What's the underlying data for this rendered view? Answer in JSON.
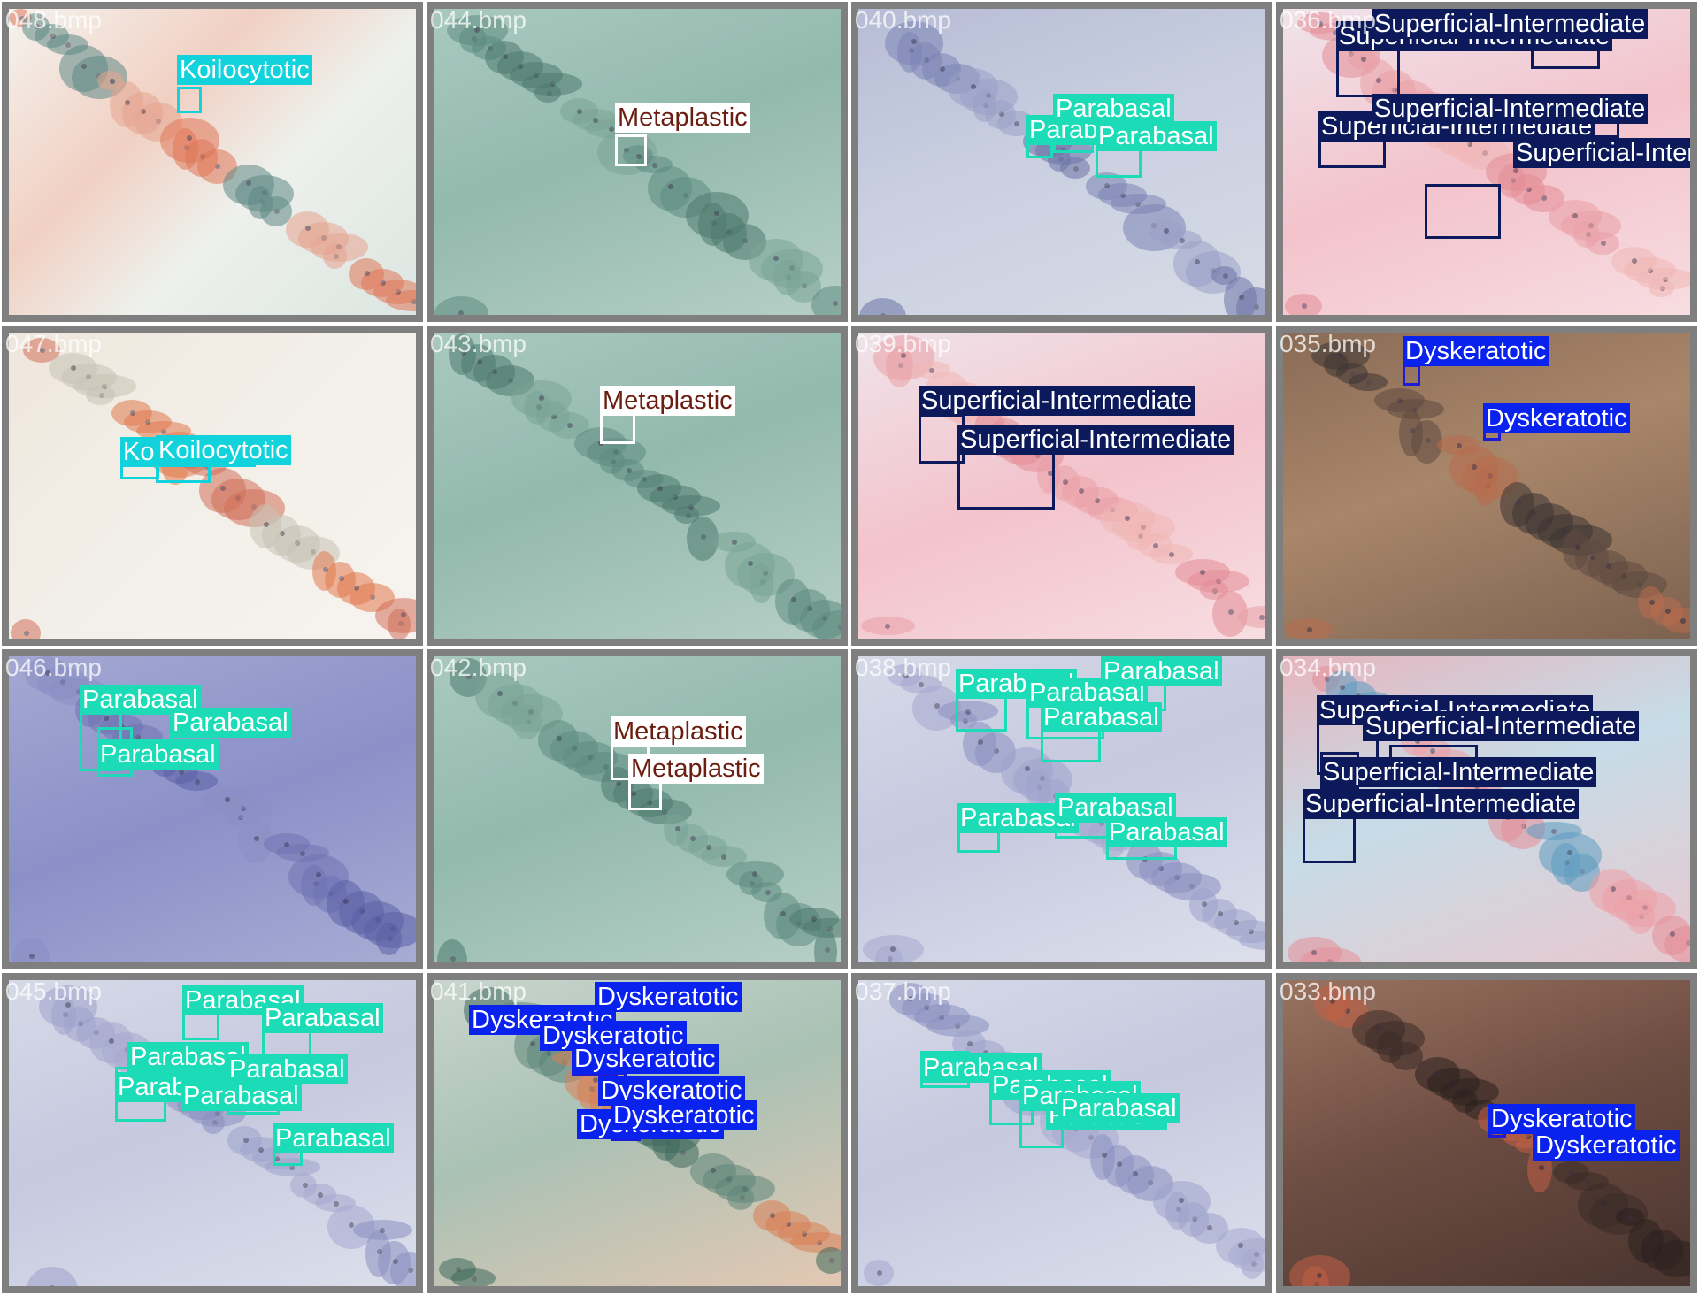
{
  "palette": {
    "Koilocytotic": {
      "box": "#12d2dc",
      "label_bg": "#12d2dc",
      "label_fg": "#ffffff"
    },
    "Metaplastic": {
      "box": "#ffffff",
      "label_bg": "#ffffff",
      "label_fg": "#6b1e10"
    },
    "Parabasal": {
      "box": "#1cdcb8",
      "label_bg": "#1cdcb8",
      "label_fg": "#ffffff"
    },
    "Superficial-Intermediate": {
      "box": "#0c1a5c",
      "label_bg": "#0c1a5c",
      "label_fg": "#ffffff"
    },
    "Dyskeratotic": {
      "box": "#1b1bd8",
      "label_bg": "#0a22ee",
      "label_fg": "#ffffff"
    }
  },
  "tiles": [
    {
      "file": "048.bmp",
      "stain": "orange-mixed",
      "detections": [
        {
          "cls": "Koilocytotic"
        }
      ]
    },
    {
      "file": "044.bmp",
      "stain": "teal",
      "detections": [
        {
          "cls": "Metaplastic"
        }
      ]
    },
    {
      "file": "040.bmp",
      "stain": "violet",
      "detections": [
        {
          "cls": "Parabasal"
        },
        {
          "cls": "Parabasal"
        },
        {
          "cls": "Parabasal"
        }
      ]
    },
    {
      "file": "036.bmp",
      "stain": "pink",
      "detections": [
        {
          "cls": "Superficial-Intermediate"
        },
        {
          "cls": "Superficial-Intermediate"
        },
        {
          "cls": "Superficial-Intermediate"
        },
        {
          "cls": "Superficial-Intermediate"
        },
        {
          "cls": "Superficial-Intermediate"
        }
      ]
    },
    {
      "file": "047.bmp",
      "stain": "orange-pale",
      "detections": [
        {
          "cls": "Koilocytotic"
        },
        {
          "cls": "Koilocytotic"
        }
      ]
    },
    {
      "file": "043.bmp",
      "stain": "teal",
      "detections": [
        {
          "cls": "Metaplastic"
        }
      ]
    },
    {
      "file": "039.bmp",
      "stain": "pink",
      "detections": [
        {
          "cls": "Superficial-Intermediate"
        },
        {
          "cls": "Superficial-Intermediate"
        }
      ]
    },
    {
      "file": "035.bmp",
      "stain": "brown",
      "detections": [
        {
          "cls": "Dyskeratotic"
        },
        {
          "cls": "Dyskeratotic"
        }
      ]
    },
    {
      "file": "046.bmp",
      "stain": "violet-dark",
      "detections": [
        {
          "cls": "Parabasal"
        },
        {
          "cls": "Parabasal"
        },
        {
          "cls": "Parabasal"
        }
      ]
    },
    {
      "file": "042.bmp",
      "stain": "teal",
      "detections": [
        {
          "cls": "Metaplastic"
        },
        {
          "cls": "Metaplastic"
        }
      ]
    },
    {
      "file": "038.bmp",
      "stain": "violet-light",
      "detections": [
        {
          "cls": "Parabasal"
        },
        {
          "cls": "Parabasal"
        },
        {
          "cls": "Parabasal"
        },
        {
          "cls": "Parabasal"
        },
        {
          "cls": "Parabasal"
        },
        {
          "cls": "Parabasal"
        },
        {
          "cls": "Parabasal"
        }
      ]
    },
    {
      "file": "034.bmp",
      "stain": "pink-blue",
      "detections": [
        {
          "cls": "Superficial-Intermediate"
        },
        {
          "cls": "Superficial-Intermediate"
        },
        {
          "cls": "Superficial-Intermediate"
        },
        {
          "cls": "Superficial-Intermediate"
        }
      ]
    },
    {
      "file": "045.bmp",
      "stain": "violet-light",
      "detections": [
        {
          "cls": "Parabasal"
        },
        {
          "cls": "Parabasal"
        },
        {
          "cls": "Parabasal"
        },
        {
          "cls": "Parabasal"
        },
        {
          "cls": "Parabasal"
        },
        {
          "cls": "Parabasal"
        },
        {
          "cls": "Parabasal"
        }
      ]
    },
    {
      "file": "041.bmp",
      "stain": "teal-orange",
      "detections": [
        {
          "cls": "Dyskeratotic"
        },
        {
          "cls": "Dyskeratotic"
        },
        {
          "cls": "Dyskeratotic"
        },
        {
          "cls": "Dyskeratotic"
        },
        {
          "cls": "Dyskeratotic"
        },
        {
          "cls": "Dyskeratotic"
        },
        {
          "cls": "Dyskeratotic"
        }
      ]
    },
    {
      "file": "037.bmp",
      "stain": "violet-light",
      "detections": [
        {
          "cls": "Parabasal"
        },
        {
          "cls": "Parabasal"
        },
        {
          "cls": "Parabasal"
        },
        {
          "cls": "Parabasal"
        },
        {
          "cls": "Parabasal"
        }
      ]
    },
    {
      "file": "033.bmp",
      "stain": "brown-dark",
      "detections": [
        {
          "cls": "Dyskeratotic"
        },
        {
          "cls": "Dyskeratotic"
        }
      ]
    }
  ]
}
